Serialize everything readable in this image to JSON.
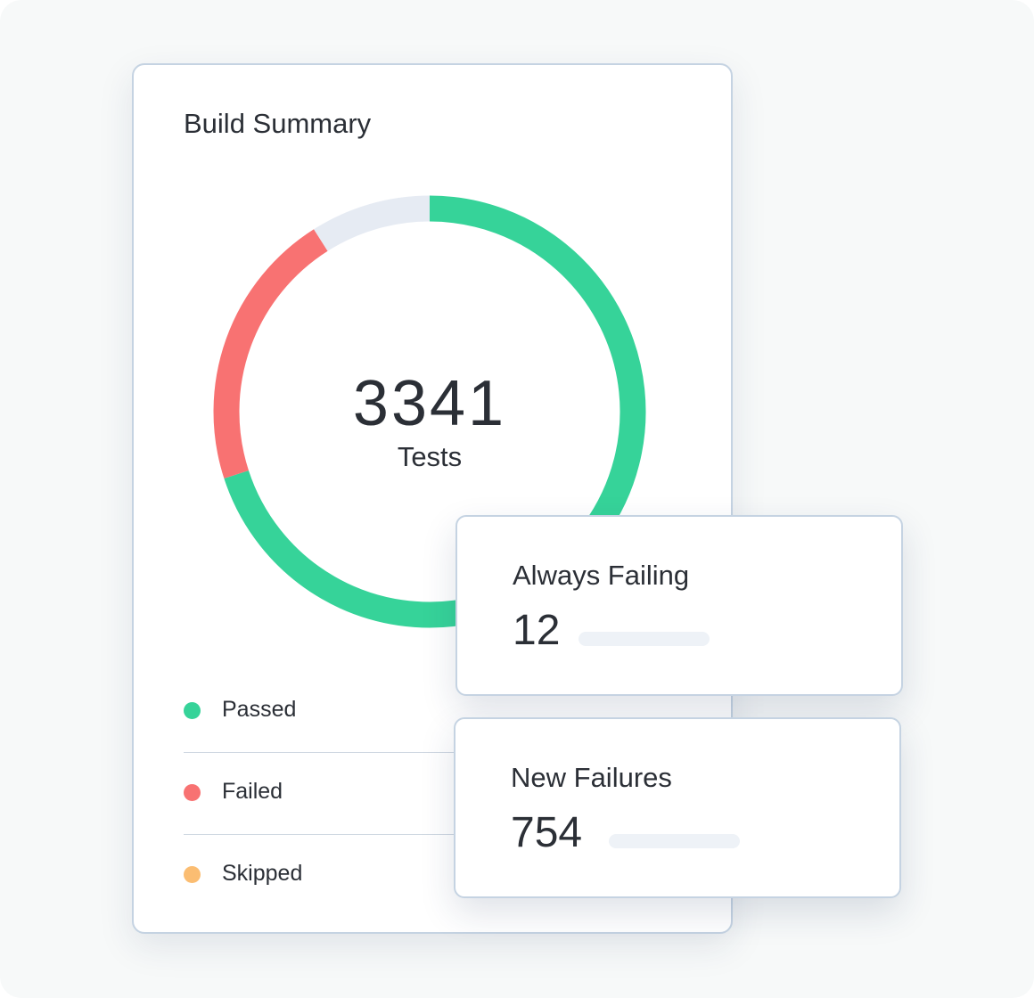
{
  "summary": {
    "title": "Build Summary",
    "total_value": "3341",
    "total_label": "Tests",
    "legend": [
      {
        "label": "Passed",
        "color": "#36d399"
      },
      {
        "label": "Failed",
        "color": "#f87272"
      },
      {
        "label": "Skipped",
        "color": "#fbbd72"
      }
    ]
  },
  "chart_data": {
    "type": "pie",
    "style": "donut",
    "center_text": "3341",
    "center_subtext": "Tests",
    "series": [
      {
        "name": "Passed",
        "value": 0.7,
        "color": "#36d399"
      },
      {
        "name": "Failed",
        "value": 0.21,
        "color": "#f87272"
      },
      {
        "name": "Skipped",
        "value": 0.09,
        "color": "#e6ebf3"
      }
    ]
  },
  "metrics": [
    {
      "title": "Always Failing",
      "value": "12"
    },
    {
      "title": "New Failures",
      "value": "754"
    }
  ],
  "colors": {
    "background": "#f7f9f9",
    "card_border": "#c5d3e2",
    "passed": "#36d399",
    "failed": "#f87272",
    "skipped": "#fbbd72",
    "track": "#e6ebf3"
  }
}
